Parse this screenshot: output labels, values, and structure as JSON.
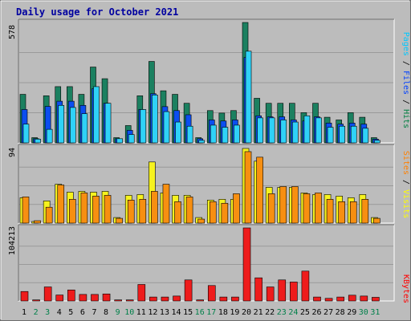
{
  "chart_data": {
    "title": "Daily usage for October 2021",
    "type": "bar",
    "categories": [
      "1",
      "2",
      "3",
      "4",
      "5",
      "6",
      "7",
      "8",
      "9",
      "10",
      "11",
      "12",
      "13",
      "14",
      "15",
      "16",
      "17",
      "18",
      "19",
      "20",
      "21",
      "22",
      "23",
      "24",
      "25",
      "26",
      "27",
      "28",
      "29",
      "30",
      "31"
    ],
    "weekend_days": [
      "2",
      "3",
      "9",
      "10",
      "16",
      "17",
      "23",
      "24",
      "30",
      "31"
    ],
    "panels": [
      {
        "id": "pages-files-hits",
        "ymax_label": "578",
        "ylim": [
          0,
          578
        ],
        "legend": [
          {
            "name": "Pages",
            "color": "#00c8ff"
          },
          {
            "name": "Files",
            "color": "#0040ff"
          },
          {
            "name": "Hits",
            "color": "#008040"
          }
        ],
        "series": [
          {
            "name": "Hits",
            "color": "#1b8060",
            "values": [
              233,
              25,
              226,
              270,
              270,
              233,
              364,
              308,
              25,
              83,
              226,
              391,
              250,
              233,
              190,
              25,
              155,
              143,
              155,
              578,
              214,
              190,
              190,
              190,
              145,
              190,
              123,
              110,
              145,
              123,
              25
            ]
          },
          {
            "name": "Files",
            "color": "#0b4ef0",
            "values": [
              160,
              20,
              175,
              200,
              200,
              180,
              260,
              190,
              20,
              60,
              160,
              236,
              174,
              155,
              135,
              20,
              110,
              105,
              110,
              410,
              130,
              125,
              125,
              110,
              105,
              125,
              95,
              90,
              95,
              90,
              18
            ]
          },
          {
            "name": "Pages",
            "color": "#2fd2f7",
            "values": [
              90,
              18,
              65,
              180,
              170,
              140,
              270,
              190,
              20,
              40,
              160,
              230,
              150,
              100,
              80,
              12,
              85,
              75,
              85,
              440,
              120,
              120,
              110,
              100,
              130,
              120,
              75,
              80,
              80,
              70,
              12
            ]
          }
        ]
      },
      {
        "id": "visits-sites",
        "ymax_label": "94",
        "ylim": [
          0,
          94
        ],
        "legend": [
          {
            "name": "Sites",
            "color": "#ff8000"
          },
          {
            "name": "Visits",
            "color": "#ffff00"
          }
        ],
        "series": [
          {
            "name": "Visits",
            "color": "#f6f21f",
            "values": [
              32,
              2,
              28,
              49,
              39,
              40,
              39,
              40,
              7,
              35,
              36,
              77,
              38,
              35,
              35,
              7,
              29,
              30,
              30,
              94,
              78,
              45,
              45,
              45,
              38,
              36,
              36,
              34,
              32,
              36,
              7
            ]
          },
          {
            "name": "Sites",
            "color": "#f78f11",
            "values": [
              33,
              3,
              20,
              48,
              30,
              38,
              34,
              35,
              6,
              29,
              30,
              40,
              49,
              27,
              33,
              5,
              27,
              25,
              37,
              90,
              83,
              37,
              46,
              46,
              37,
              38,
              30,
              27,
              27,
              30,
              6
            ]
          }
        ]
      },
      {
        "id": "kbytes",
        "ymax_label": "104213",
        "ylim": [
          0,
          104213
        ],
        "legend": [
          {
            "name": "KBytes",
            "color": "#ff0000"
          }
        ],
        "series": [
          {
            "name": "KBytes",
            "color": "#ee1c1c",
            "values": [
              13500,
              1500,
              20000,
              8500,
              15700,
              9300,
              9300,
              10000,
              1500,
              1500,
              23500,
              5600,
              5600,
              7000,
              30000,
              1500,
              22000,
              5600,
              5600,
              104213,
              33000,
              20000,
              30000,
              27000,
              42600,
              5600,
              3700,
              5600,
              8200,
              7000,
              5200
            ]
          }
        ]
      }
    ]
  }
}
